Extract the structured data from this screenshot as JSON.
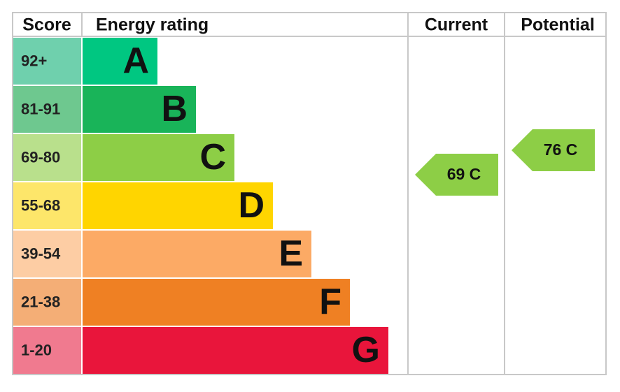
{
  "headers": {
    "score": "Score",
    "rating": "Energy rating",
    "current": "Current",
    "potential": "Potential"
  },
  "bands": [
    {
      "range": "92+",
      "letter": "A",
      "color": "#00c781",
      "light": "#6fd0ad"
    },
    {
      "range": "81-91",
      "letter": "B",
      "color": "#19b459",
      "light": "#6ec88f"
    },
    {
      "range": "69-80",
      "letter": "C",
      "color": "#8dce46",
      "light": "#b9e08c"
    },
    {
      "range": "55-68",
      "letter": "D",
      "color": "#ffd500",
      "light": "#fde66a"
    },
    {
      "range": "39-54",
      "letter": "E",
      "color": "#fcaa65",
      "light": "#fdcda4"
    },
    {
      "range": "21-38",
      "letter": "F",
      "color": "#ef8023",
      "light": "#f4ae76"
    },
    {
      "range": "1-20",
      "letter": "G",
      "color": "#e9153b",
      "light": "#f07a8f"
    }
  ],
  "current": {
    "label": "69 C",
    "color": "#8dce46"
  },
  "potential": {
    "label": "76 C",
    "color": "#8dce46"
  }
}
